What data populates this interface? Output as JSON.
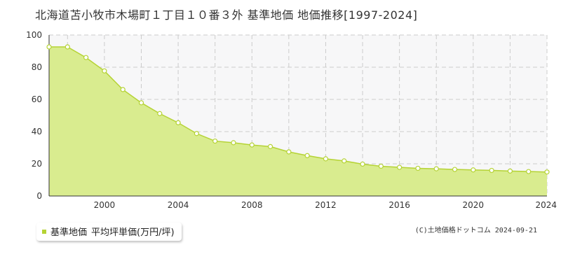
{
  "page": {
    "title": "北海道苫小牧市木場町１丁目１０番３外 基準地価 地価推移[1997-2024]",
    "credit": "(C)土地価格ドットコム 2024-09-21"
  },
  "legend": {
    "label": "基準地価",
    "sub_label": "平均坪単価(万円/坪)",
    "color": "#b5d334"
  },
  "colors": {
    "area_fill": "#d9ec8f",
    "line": "#b5d334",
    "marker_fill": "#ffffff",
    "marker_stroke": "#b5d334",
    "grid": "#cccccc",
    "plot_bg_upper": "#f7f7f8"
  },
  "chart_data": {
    "type": "area",
    "title": "北海道苫小牧市木場町１丁目１０番３外 基準地価 地価推移[1997-2024]",
    "xlabel": "",
    "ylabel": "",
    "x": [
      1997,
      1998,
      1999,
      2000,
      2001,
      2002,
      2003,
      2004,
      2005,
      2006,
      2007,
      2008,
      2009,
      2010,
      2011,
      2012,
      2013,
      2014,
      2015,
      2016,
      2017,
      2018,
      2019,
      2020,
      2021,
      2022,
      2023,
      2024
    ],
    "series": [
      {
        "name": "基準地価 平均坪単価(万円/坪)",
        "values": [
          92.6,
          92.6,
          86.0,
          77.7,
          66.1,
          57.9,
          51.2,
          45.5,
          38.8,
          34.1,
          33.1,
          31.7,
          30.7,
          27.4,
          25.1,
          23.1,
          21.8,
          19.8,
          18.5,
          17.8,
          17.2,
          16.9,
          16.5,
          16.2,
          15.9,
          15.5,
          15.2,
          14.9
        ]
      }
    ],
    "xticks": [
      "2000",
      "2004",
      "2008",
      "2012",
      "2016",
      "2020",
      "2024"
    ],
    "xtick_values": [
      2000,
      2004,
      2008,
      2012,
      2016,
      2020,
      2024
    ],
    "yticks": [
      "0",
      "20",
      "40",
      "60",
      "80",
      "100"
    ],
    "ytick_values": [
      0,
      20,
      40,
      60,
      80,
      100
    ],
    "xlim": [
      1997,
      2024
    ],
    "ylim": [
      0,
      100
    ],
    "grid": true,
    "legend_position": "bottom-left"
  }
}
